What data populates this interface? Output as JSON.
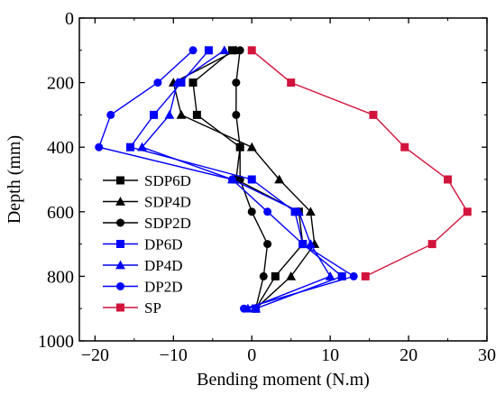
{
  "chart_data": {
    "type": "line",
    "title": "",
    "xlabel": "Bending moment (N.m)",
    "ylabel": "Depth (mm)",
    "xlim": [
      -22,
      30
    ],
    "ylim": [
      0,
      1000
    ],
    "y_inverted": true,
    "x_ticks": [
      -20,
      -10,
      0,
      10,
      20,
      30
    ],
    "x_tick_labels": [
      "−20",
      "−10",
      "0",
      "10",
      "20",
      "30"
    ],
    "y_ticks": [
      0,
      200,
      400,
      600,
      800,
      1000
    ],
    "y_tick_labels": [
      "0",
      "200",
      "400",
      "600",
      "800",
      "1000"
    ],
    "grid": false,
    "legend_position": "left",
    "series": [
      {
        "name": "SDP6D",
        "color": "#000000",
        "marker": "square",
        "x": [
          -2.5,
          -7.5,
          -7.0,
          -1.5,
          -2.0,
          6.0,
          6.5,
          3.0,
          0.5
        ],
        "y": [
          100,
          200,
          300,
          400,
          500,
          600,
          700,
          800,
          900
        ]
      },
      {
        "name": "SDP4D",
        "color": "#000000",
        "marker": "triangle",
        "x": [
          -2.0,
          -10.0,
          -9.0,
          0.0,
          3.5,
          7.5,
          8.0,
          5.0,
          0.5
        ],
        "y": [
          100,
          200,
          300,
          400,
          500,
          600,
          700,
          800,
          900
        ]
      },
      {
        "name": "SDP2D",
        "color": "#000000",
        "marker": "circle",
        "x": [
          -1.5,
          -2.0,
          -2.0,
          -1.5,
          -1.5,
          0.0,
          2.0,
          1.5,
          0.5
        ],
        "y": [
          100,
          200,
          300,
          400,
          500,
          600,
          700,
          800,
          900
        ]
      },
      {
        "name": "DP6D",
        "color": "#0000ff",
        "marker": "square",
        "x": [
          -5.5,
          -9.0,
          -12.5,
          -15.5,
          0.0,
          5.5,
          6.5,
          11.5,
          0.5
        ],
        "y": [
          100,
          200,
          300,
          400,
          500,
          600,
          700,
          800,
          900
        ]
      },
      {
        "name": "DP4D",
        "color": "#0000ff",
        "marker": "triangle",
        "x": [
          -3.5,
          -9.5,
          -10.5,
          -14.0,
          -2.5,
          6.0,
          7.5,
          10.0,
          -0.5
        ],
        "y": [
          100,
          200,
          300,
          400,
          500,
          600,
          700,
          800,
          900
        ]
      },
      {
        "name": "DP2D",
        "color": "#0000ff",
        "marker": "circle",
        "x": [
          -7.5,
          -12.0,
          -18.0,
          -19.5,
          -2.5,
          2.0,
          6.5,
          13.0,
          -1.0
        ],
        "y": [
          100,
          200,
          300,
          400,
          500,
          600,
          700,
          800,
          900
        ]
      },
      {
        "name": "SP",
        "color": "#d2143c",
        "marker": "square",
        "x": [
          0.0,
          5.0,
          15.5,
          19.5,
          25.0,
          27.5,
          23.0,
          14.5
        ],
        "y": [
          100,
          200,
          300,
          400,
          500,
          600,
          700,
          800
        ]
      }
    ]
  }
}
